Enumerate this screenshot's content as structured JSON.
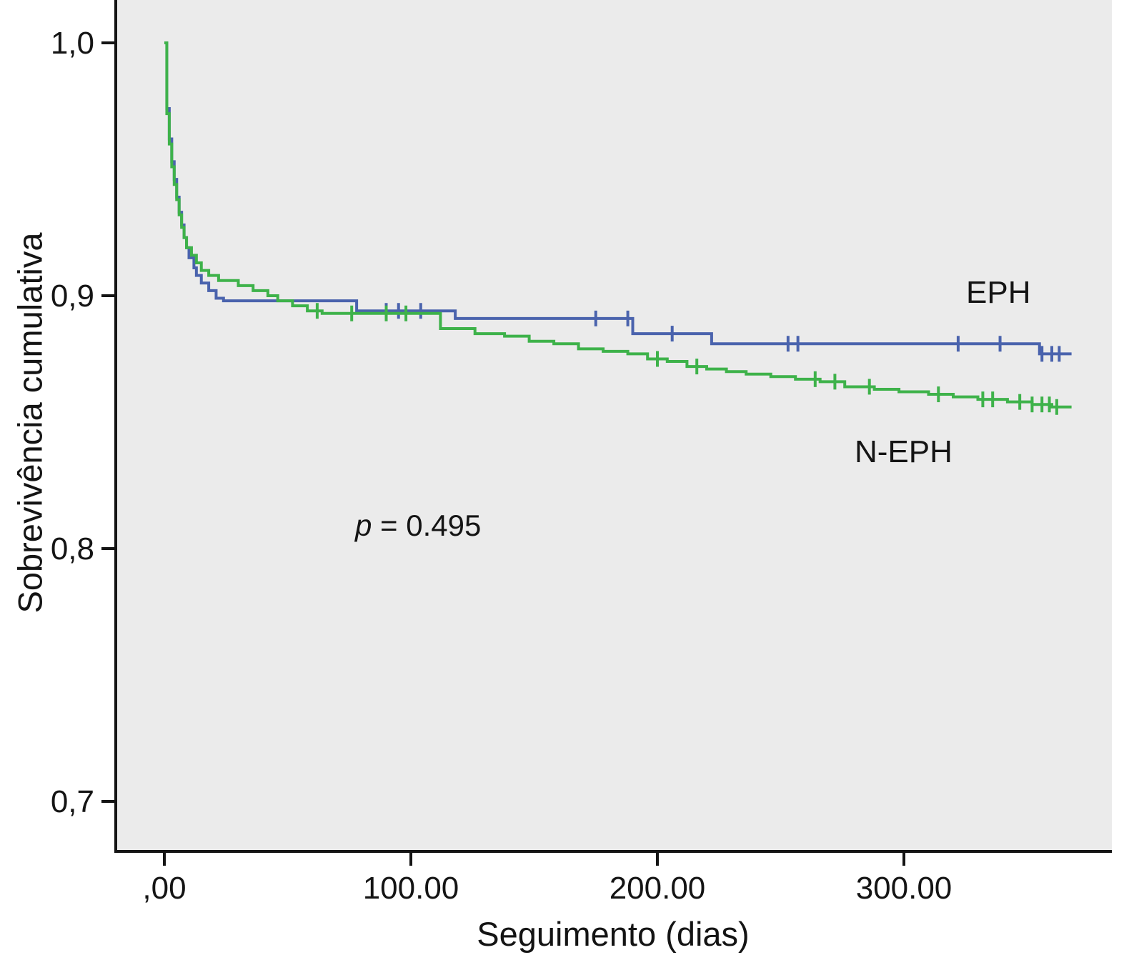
{
  "chart_data": {
    "type": "line",
    "subtype": "kaplan-meier-step-survival",
    "title": "",
    "xlabel": "Seguimento (dias)",
    "ylabel": "Sobrevivência cumulativa",
    "annotation_p_value": "p = 0.495",
    "annotation_p_var": "p",
    "annotation_p_rest": " = 0.495",
    "xlim": [
      -20,
      390
    ],
    "ylim": [
      0.665,
      1.017
    ],
    "grid": false,
    "legend_position": "inline-labels",
    "plot_background": "#ebebeb",
    "axis_color": "#141414",
    "x_ticks": [
      {
        "value": 0,
        "label": ",00"
      },
      {
        "value": 100,
        "label": "100.00"
      },
      {
        "value": 200,
        "label": "200.00"
      },
      {
        "value": 300,
        "label": "300.00"
      }
    ],
    "y_ticks": [
      {
        "value": 1.0,
        "label": "1,0"
      },
      {
        "value": 0.9,
        "label": "0,9"
      },
      {
        "value": 0.8,
        "label": "0,8"
      },
      {
        "value": 0.7,
        "label": "0,7"
      }
    ],
    "series": [
      {
        "name": "EPH",
        "color": "#4a63ad",
        "end_time": 368,
        "steps": [
          [
            0,
            1.0
          ],
          [
            1,
            0.974
          ],
          [
            2,
            0.962
          ],
          [
            3,
            0.953
          ],
          [
            4,
            0.946
          ],
          [
            5,
            0.939
          ],
          [
            6,
            0.933
          ],
          [
            7,
            0.928
          ],
          [
            8,
            0.923
          ],
          [
            9,
            0.919
          ],
          [
            10,
            0.915
          ],
          [
            12,
            0.911
          ],
          [
            13,
            0.908
          ],
          [
            15,
            0.905
          ],
          [
            18,
            0.902
          ],
          [
            21,
            0.899
          ],
          [
            24,
            0.898
          ],
          [
            78,
            0.894
          ],
          [
            118,
            0.891
          ],
          [
            190,
            0.885
          ],
          [
            222,
            0.881
          ],
          [
            355,
            0.877
          ]
        ],
        "censor_times": [
          90,
          95,
          104,
          175,
          188,
          206,
          253,
          257,
          322,
          339,
          356,
          360,
          363
        ]
      },
      {
        "name": "N-EPH",
        "color": "#3eb24a",
        "end_time": 368,
        "steps": [
          [
            0,
            1.0
          ],
          [
            1,
            0.972
          ],
          [
            2,
            0.96
          ],
          [
            3,
            0.951
          ],
          [
            4,
            0.944
          ],
          [
            5,
            0.938
          ],
          [
            6,
            0.932
          ],
          [
            7,
            0.927
          ],
          [
            8,
            0.923
          ],
          [
            9,
            0.919
          ],
          [
            11,
            0.916
          ],
          [
            13,
            0.913
          ],
          [
            15,
            0.91
          ],
          [
            18,
            0.908
          ],
          [
            22,
            0.906
          ],
          [
            30,
            0.904
          ],
          [
            36,
            0.902
          ],
          [
            42,
            0.9
          ],
          [
            46,
            0.898
          ],
          [
            52,
            0.896
          ],
          [
            58,
            0.894
          ],
          [
            64,
            0.893
          ],
          [
            112,
            0.887
          ],
          [
            126,
            0.885
          ],
          [
            138,
            0.884
          ],
          [
            148,
            0.882
          ],
          [
            158,
            0.881
          ],
          [
            168,
            0.879
          ],
          [
            178,
            0.878
          ],
          [
            188,
            0.877
          ],
          [
            196,
            0.875
          ],
          [
            204,
            0.874
          ],
          [
            212,
            0.872
          ],
          [
            220,
            0.871
          ],
          [
            228,
            0.87
          ],
          [
            236,
            0.869
          ],
          [
            246,
            0.868
          ],
          [
            256,
            0.867
          ],
          [
            266,
            0.866
          ],
          [
            276,
            0.864
          ],
          [
            288,
            0.863
          ],
          [
            298,
            0.862
          ],
          [
            310,
            0.861
          ],
          [
            320,
            0.86
          ],
          [
            330,
            0.859
          ],
          [
            342,
            0.858
          ],
          [
            352,
            0.857
          ],
          [
            360,
            0.856
          ]
        ],
        "censor_times": [
          62,
          76,
          90,
          98,
          200,
          216,
          264,
          272,
          286,
          314,
          332,
          336,
          347,
          352,
          356,
          359,
          362
        ]
      }
    ],
    "series_labels": [
      {
        "text": "EPH"
      },
      {
        "text": "N-EPH"
      }
    ]
  }
}
